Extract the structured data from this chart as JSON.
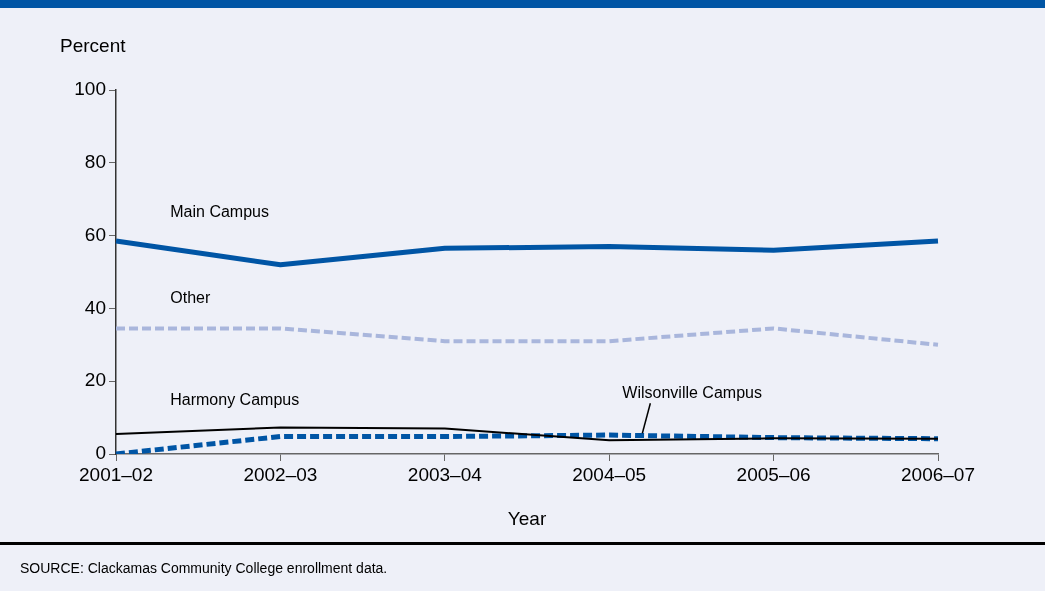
{
  "chart_data": {
    "type": "line",
    "ylabel": "Percent",
    "xlabel": "Year",
    "categories": [
      "2001–02",
      "2002–03",
      "2003–04",
      "2004–05",
      "2005–06",
      "2006–07"
    ],
    "series": [
      {
        "name": "Main Campus",
        "color": "#0055a5",
        "line_style": "solid",
        "values": [
          58.5,
          52,
          56.5,
          57,
          56,
          58.5
        ]
      },
      {
        "name": "Other",
        "color": "#a9b6dc",
        "line_style": "dashed",
        "values": [
          34.5,
          34.5,
          31,
          31,
          34.5,
          30
        ]
      },
      {
        "name": "Harmony Campus",
        "color": "#000000",
        "line_style": "solid",
        "values": [
          5.5,
          7.3,
          7,
          3.8,
          4.3,
          4.2
        ]
      },
      {
        "name": "Wilsonville Campus",
        "color": "#0055a5",
        "line_style": "dashed",
        "values": [
          0,
          4.8,
          4.8,
          5.2,
          4.5,
          4.2
        ]
      }
    ],
    "ylim": [
      0,
      100
    ],
    "yticks": [
      0,
      20,
      40,
      60,
      80,
      100
    ],
    "grid": false,
    "legend": false,
    "marker": "none",
    "annotations": [
      "SOURCE: Clackamas Community College enrollment data."
    ]
  }
}
